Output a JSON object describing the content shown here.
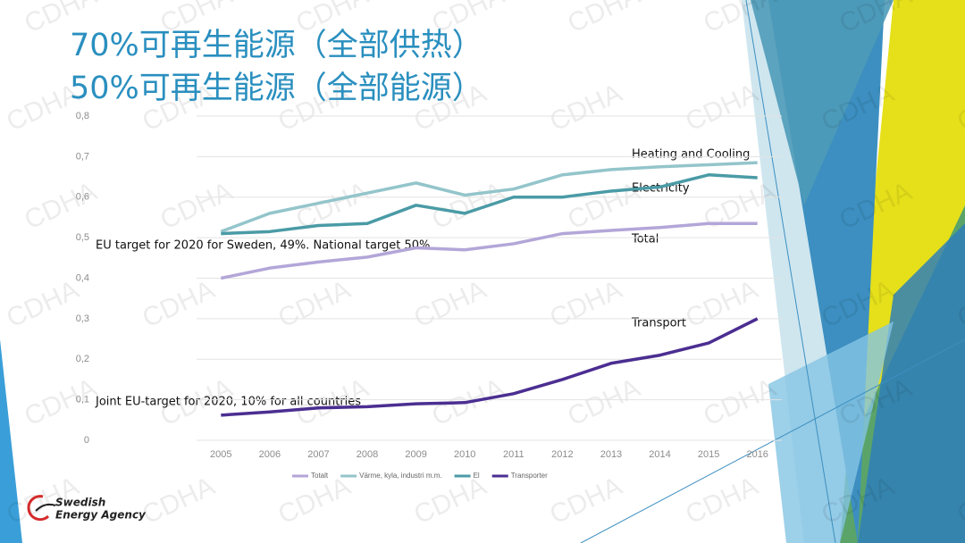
{
  "chart_data": {
    "type": "line",
    "title": [
      "70%可再生能源（全部供热）",
      "50%可再生能源（全部能源）"
    ],
    "categories": [
      "2005",
      "2006",
      "2007",
      "2008",
      "2009",
      "2010",
      "2011",
      "2012",
      "2013",
      "2014",
      "2015",
      "2016"
    ],
    "series": [
      {
        "name": "Totalt",
        "color": "#b3a6d8",
        "values": [
          0.4,
          0.425,
          0.44,
          0.452,
          0.475,
          0.47,
          0.485,
          0.51,
          0.518,
          0.525,
          0.535,
          0.535
        ]
      },
      {
        "name": "Värme, kyla, industri m.m.",
        "color": "#93c5cb",
        "values": [
          0.515,
          0.56,
          0.585,
          0.61,
          0.635,
          0.605,
          0.62,
          0.655,
          0.668,
          0.675,
          0.68,
          0.685
        ]
      },
      {
        "name": "El",
        "color": "#4a9ba6",
        "values": [
          0.51,
          0.515,
          0.53,
          0.535,
          0.58,
          0.56,
          0.6,
          0.6,
          0.615,
          0.625,
          0.655,
          0.648
        ]
      },
      {
        "name": "Transporter",
        "color": "#4b2e91",
        "values": [
          0.062,
          0.07,
          0.08,
          0.083,
          0.09,
          0.093,
          0.115,
          0.15,
          0.19,
          0.21,
          0.24,
          0.3
        ]
      }
    ],
    "ylim": [
      0,
      0.8
    ],
    "yticks": [
      0,
      {
        "value": 0.1,
        "label": "0,1"
      },
      {
        "value": 0.2,
        "label": "0,2"
      },
      {
        "value": 0.3,
        "label": "0,3"
      },
      {
        "value": 0.4,
        "label": "0,4"
      },
      {
        "value": 0.5,
        "label": "0,5"
      },
      {
        "value": 0.6,
        "label": "0,6"
      },
      {
        "value": 0.7,
        "label": "0,7"
      },
      {
        "value": 0.8,
        "label": "0,8"
      }
    ],
    "grid": true,
    "annotations": [
      "Heating and Cooling",
      "Electricity",
      "Total",
      "Transport",
      "EU target for 2020 for Sweden, 49%. National target 50%",
      "Joint EU-target for 2020, 10% for all countries"
    ],
    "logo": [
      "Swedish",
      "Energy Agency"
    ],
    "watermark": "CDHA"
  }
}
